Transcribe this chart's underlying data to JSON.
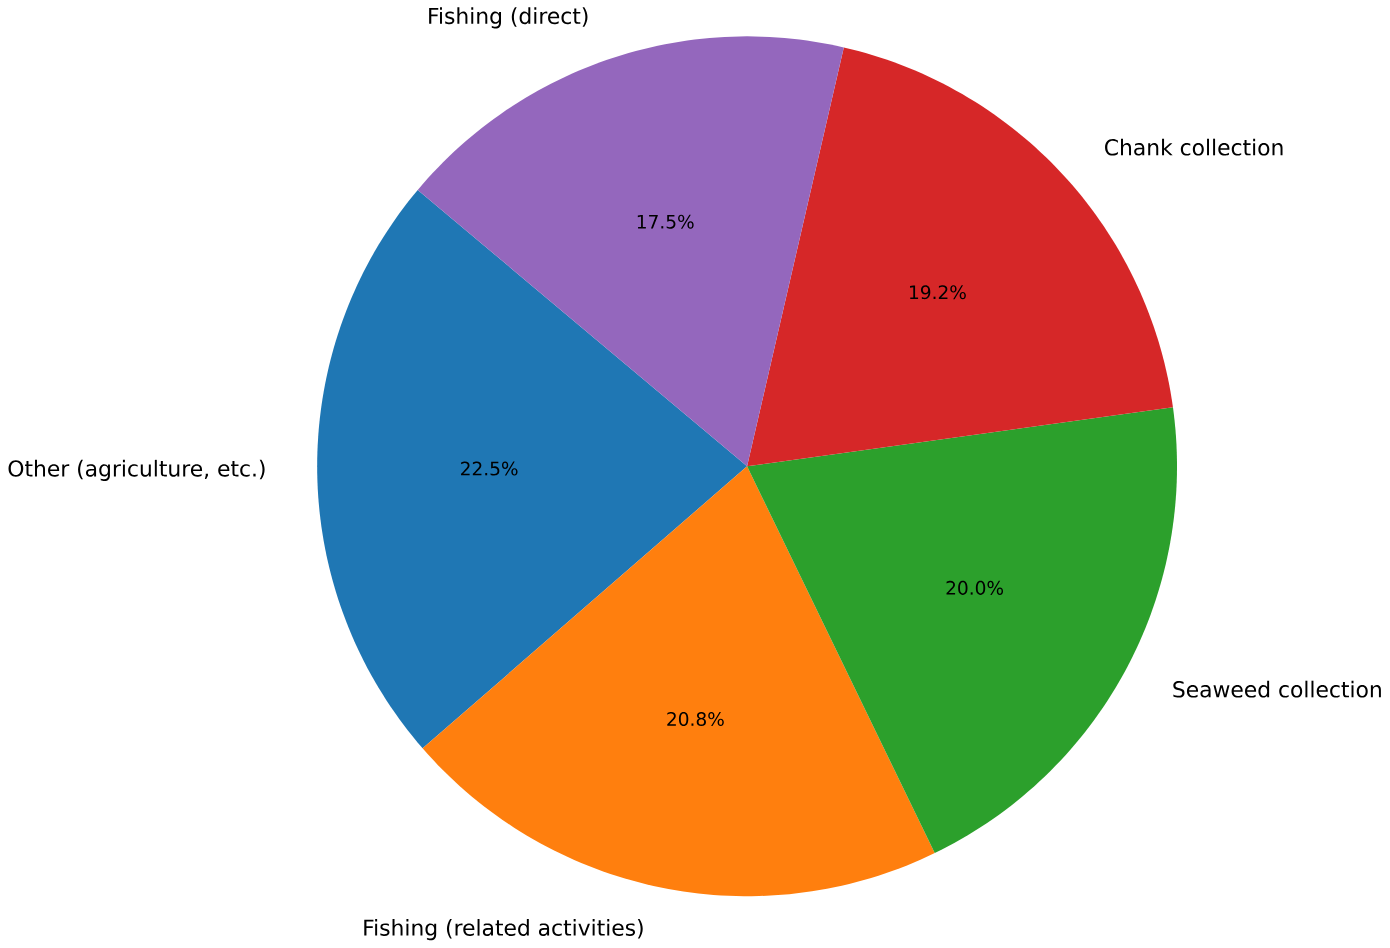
{
  "chart_data": {
    "type": "pie",
    "categories": [
      "Other (agriculture, etc.)",
      "Fishing (related activities)",
      "Seaweed collection",
      "Chank collection",
      "Fishing (direct)"
    ],
    "values": [
      22.5,
      20.8,
      20.0,
      19.2,
      17.5
    ],
    "colors": [
      "#1f77b4",
      "#ff7f0e",
      "#2ca02c",
      "#d62728",
      "#9467bd"
    ],
    "value_labels": [
      "22.5%",
      "20.8%",
      "20.0%",
      "19.2%",
      "17.5%"
    ]
  }
}
